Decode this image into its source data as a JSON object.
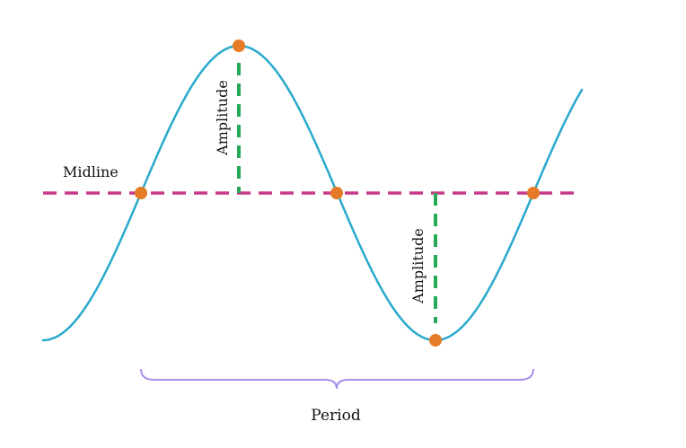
{
  "labels": {
    "midline": "Midline",
    "amplitude_top": "Amplitude",
    "amplitude_bottom": "Amplitude",
    "period": "Period"
  },
  "colors": {
    "curve": "#29a9cc",
    "midline": "#c83a8a",
    "amplitude": "#27a857",
    "points": "#e57b27",
    "brace": "#a98ee8"
  }
}
